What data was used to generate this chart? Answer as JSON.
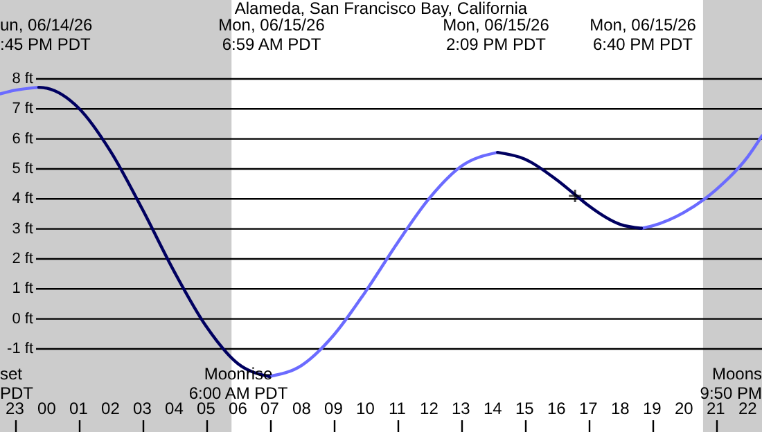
{
  "chart_data": {
    "type": "line",
    "title": "Alameda, San Francisco Bay, California",
    "x": [
      "--06-14T22:32",
      "--06-14T23:00",
      "--06-14T23:45",
      "--06-15T00:00",
      "--06-15T01:00",
      "--06-15T02:00",
      "--06-15T03:00",
      "--06-15T04:00",
      "--06-15T05:00",
      "--06-15T06:00",
      "--06-15T06:59",
      "--06-15T08:00",
      "--06-15T09:00",
      "--06-15T10:00",
      "--06-15T11:00",
      "--06-15T12:00",
      "--06-15T13:00",
      "--06-15T14:09",
      "--06-15T15:00",
      "--06-15T16:00",
      "--06-15T16:35",
      "--06-15T17:00",
      "--06-15T18:00",
      "--06-15T18:40",
      "--06-15T19:00",
      "--06-15T20:00",
      "--06-15T21:00",
      "--06-15T22:00",
      "--06-15T22:27"
    ],
    "series": [
      {
        "color": "#6b6bff",
        "values": [
          7.5,
          7.62,
          7.72,
          null,
          null,
          null,
          null,
          null,
          null,
          null,
          -1.92,
          -1.55,
          -0.55,
          0.9,
          2.52,
          4.01,
          5.08,
          5.55,
          null,
          null,
          null,
          null,
          null,
          3.02,
          3.1,
          3.55,
          4.3,
          5.4,
          6.1
        ]
      },
      {
        "color": "#000060",
        "values": [
          null,
          null,
          7.72,
          7.69,
          7.03,
          5.59,
          3.66,
          1.58,
          -0.24,
          -1.49,
          -1.92,
          null,
          null,
          null,
          null,
          null,
          null,
          5.55,
          5.33,
          4.64,
          4.14,
          3.78,
          3.15,
          3.02,
          null,
          null,
          null,
          null,
          null
        ]
      },
      {
        "type": "scatter",
        "marker": "cross",
        "color": "#000000",
        "x": [
          "--06-15T16:35"
        ],
        "values": [
          4.1
        ]
      }
    ],
    "xlim": [
      "--06-14T22:32",
      "--06-15T22:27"
    ],
    "ylim": [
      -3.77,
      10.63
    ],
    "xticks": [
      {
        "value": "--06-14T23:00",
        "label": "23"
      },
      {
        "value": "--06-15T00:00",
        "label": "00"
      },
      {
        "value": "--06-15T01:00",
        "label": "01"
      },
      {
        "value": "--06-15T02:00",
        "label": "02"
      },
      {
        "value": "--06-15T03:00",
        "label": "03"
      },
      {
        "value": "--06-15T04:00",
        "label": "04"
      },
      {
        "value": "--06-15T05:00",
        "label": "05"
      },
      {
        "value": "--06-15T06:00",
        "label": "06"
      },
      {
        "value": "--06-15T07:00",
        "label": "07"
      },
      {
        "value": "--06-15T08:00",
        "label": "08"
      },
      {
        "value": "--06-15T09:00",
        "label": "09"
      },
      {
        "value": "--06-15T10:00",
        "label": "10"
      },
      {
        "value": "--06-15T11:00",
        "label": "11"
      },
      {
        "value": "--06-15T12:00",
        "label": "12"
      },
      {
        "value": "--06-15T13:00",
        "label": "13"
      },
      {
        "value": "--06-15T14:00",
        "label": "14"
      },
      {
        "value": "--06-15T15:00",
        "label": "15"
      },
      {
        "value": "--06-15T16:00",
        "label": "16"
      },
      {
        "value": "--06-15T17:00",
        "label": "17"
      },
      {
        "value": "--06-15T18:00",
        "label": "18"
      },
      {
        "value": "--06-15T19:00",
        "label": "19"
      },
      {
        "value": "--06-15T20:00",
        "label": "20"
      },
      {
        "value": "--06-15T21:00",
        "label": "21"
      },
      {
        "value": "--06-15T22:00",
        "label": "22"
      }
    ],
    "yticks": [
      {
        "value": -1,
        "label": "-1 ft"
      },
      {
        "value": 0,
        "label": "0 ft"
      },
      {
        "value": 1,
        "label": "1 ft"
      },
      {
        "value": 2,
        "label": "2 ft"
      },
      {
        "value": 3,
        "label": "3 ft"
      },
      {
        "value": 4,
        "label": "4 ft"
      },
      {
        "value": 5,
        "label": "5 ft"
      },
      {
        "value": 6,
        "label": "6 ft"
      },
      {
        "value": 7,
        "label": "7 ft"
      },
      {
        "value": 8,
        "label": "8 ft"
      }
    ],
    "grid": "y",
    "line_style": "solid",
    "bands": [
      {
        "axis": "x",
        "from": "--06-14T22:32",
        "to": "--06-15T05:48",
        "color": "#cccccc"
      },
      {
        "axis": "x",
        "from": "--06-15T20:36",
        "to": "--06-15T22:27",
        "color": "#cccccc"
      }
    ],
    "annotations": [
      "un, 06/14/26\n:45 PM PDT",
      "Mon, 06/15/26\n6:59 AM PDT",
      "Mon, 06/15/26\n2:09 PM PDT",
      "Mon, 06/15/26\n6:40 PM PDT",
      "set\nPDT",
      "Moonrise\n6:00 AM PDT",
      "Moons\n9:50 PM"
    ]
  }
}
